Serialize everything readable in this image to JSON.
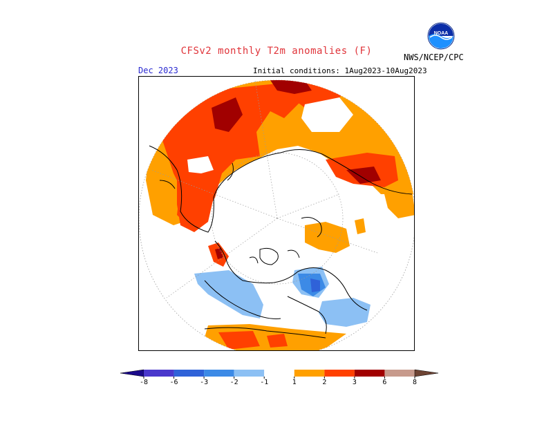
{
  "header": {
    "title": "CFSv2 monthly T2m anomalies (F)",
    "organization": "NWS/NCEP/CPC",
    "logo_text": "NOAA",
    "forecast_month": "Dec 2023",
    "initial_conditions": "Initial conditions: 1Aug2023-10Aug2023"
  },
  "colors": {
    "title": "#e0343a",
    "date": "#2a2ad0",
    "orange": "#ffa000",
    "red_orange": "#ff4000",
    "dark_red": "#a10000",
    "light_blue": "#77b5f0",
    "blue": "#3b78dd"
  },
  "legend": {
    "tick_labels": [
      "-8",
      "-6",
      "-3",
      "-2",
      "-1",
      "1",
      "2",
      "3",
      "6",
      "8"
    ],
    "bins": [
      {
        "range": "< -8",
        "color": "#1a0a8a"
      },
      {
        "range": "-8 to -6",
        "color": "#4a38cc"
      },
      {
        "range": "-6 to -3",
        "color": "#2f62d8"
      },
      {
        "range": "-3 to -2",
        "color": "#3c8ae6"
      },
      {
        "range": "-2 to -1",
        "color": "#8cc0f4"
      },
      {
        "range": "-1 to 1",
        "color": "#ffffff"
      },
      {
        "range": "1 to 2",
        "color": "#ffa000"
      },
      {
        "range": "2 to 3",
        "color": "#ff4000"
      },
      {
        "range": "3 to 6",
        "color": "#a10000"
      },
      {
        "range": "6 to 8",
        "color": "#c79a8c"
      },
      {
        "range": "> 8",
        "color": "#6e4434"
      }
    ]
  }
}
